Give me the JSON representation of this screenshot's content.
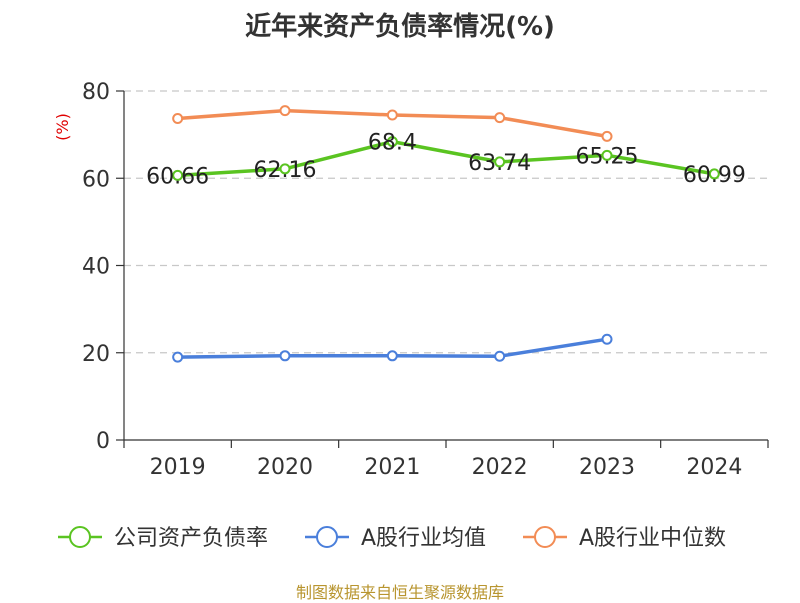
{
  "chart_data": {
    "type": "line",
    "title": "近年来资产负债率情况(%)",
    "ylabel": "(%)",
    "categories": [
      "2019",
      "2020",
      "2021",
      "2022",
      "2023",
      "2024"
    ],
    "ylim": [
      0,
      80
    ],
    "yticks": [
      0,
      20,
      40,
      60,
      80
    ],
    "grid": true,
    "legend_position": "bottom",
    "series": [
      {
        "name": "公司资产负债率",
        "color": "#5ac421",
        "values": [
          60.66,
          62.16,
          68.4,
          63.74,
          65.25,
          60.99
        ],
        "labels": [
          "60.66",
          "62.16",
          "68.4",
          "63.74",
          "65.25",
          "60.99"
        ]
      },
      {
        "name": "A股行业均值",
        "color": "#4a7fdb",
        "values": [
          19.0,
          19.3,
          19.3,
          19.2,
          23.1,
          null
        ]
      },
      {
        "name": "A股行业中位数",
        "color": "#f28c55",
        "values": [
          73.7,
          75.5,
          74.5,
          73.9,
          69.6,
          null
        ]
      }
    ]
  },
  "source": "制图数据来自恒生聚源数据库"
}
